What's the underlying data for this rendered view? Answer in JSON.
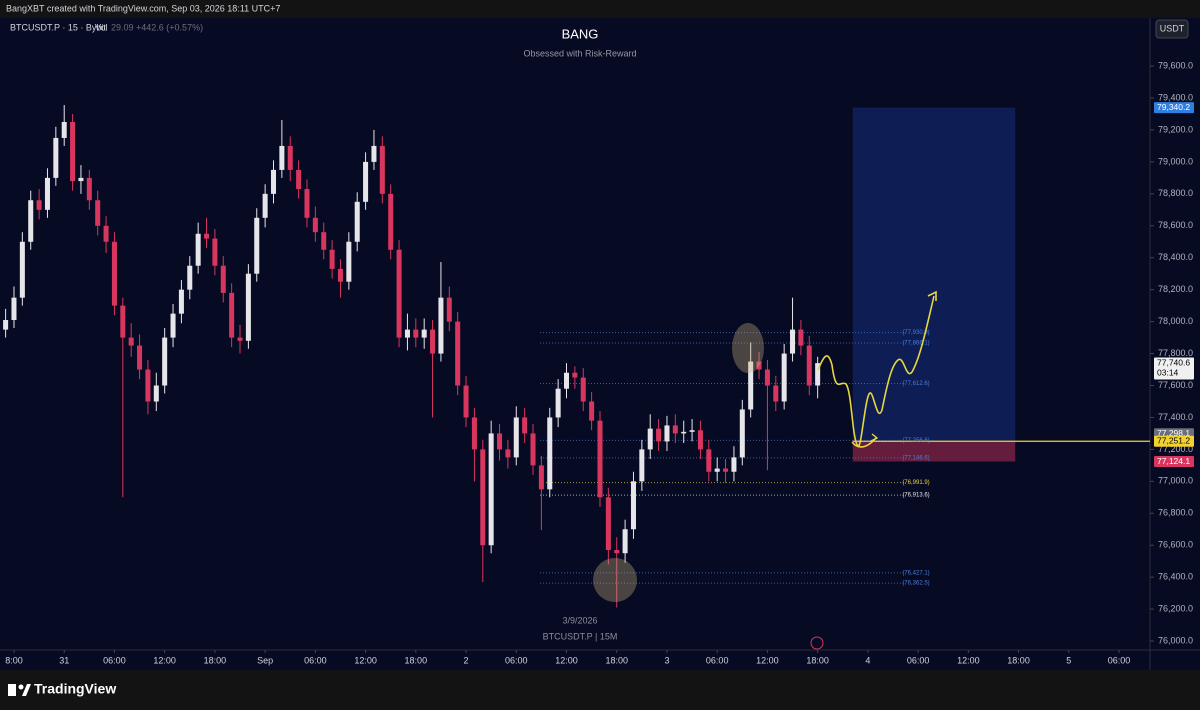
{
  "header": "BangXBT created with TradingView.com, Sep 03, 2026 18:11 UTC+7",
  "footer": "TradingView",
  "chart_data": {
    "type": "candlestick",
    "title": "BANG",
    "subtitle": "Obsessed with Risk-Reward",
    "symbol": "BTCUSDT.P · 15 · Bybit",
    "volume_label": "Vol",
    "volume_text": "29.09 +442.6 (+0.57%)",
    "currency": "USDT",
    "watermark_date": "3/9/2026",
    "watermark_symbol": "BTCUSDT.P | 15M",
    "countdown": "03:14",
    "up_color": "#e6e6ea",
    "down_color": "#d8365e",
    "open": [
      77950,
      78010,
      78150,
      78500,
      78760,
      78700,
      78900,
      79150,
      79250,
      78880,
      78900,
      78760,
      78600,
      78500,
      78100,
      77900,
      77850,
      77700,
      77500,
      77600,
      77900,
      78050,
      78200,
      78350,
      78550,
      78520,
      78350,
      78180,
      77900,
      77880,
      78300,
      78650,
      78800,
      78950,
      79100,
      78950,
      78830,
      78650,
      78560,
      78450,
      78330,
      78250,
      78500,
      78750,
      79000,
      79100,
      78800,
      78450,
      77900,
      77950,
      77900,
      77950,
      77800,
      78150,
      78000,
      77600,
      77400,
      77200,
      76600,
      77300,
      77200,
      77150,
      77400,
      77300,
      77100,
      76950,
      77400,
      77580,
      77680,
      77650,
      77500,
      77380,
      76900,
      76570,
      76550,
      76700,
      77000,
      77200,
      77330,
      77250,
      77350,
      77300,
      77310,
      77320,
      77200,
      77060,
      77080,
      77060,
      77150,
      77450,
      77750,
      77700,
      77600,
      77500,
      77800,
      77950,
      77850,
      77600
    ],
    "high": [
      78080,
      78220,
      78560,
      78820,
      78830,
      78960,
      79220,
      79356,
      79300,
      78980,
      78950,
      78820,
      78660,
      78560,
      78150,
      77990,
      77920,
      77760,
      77680,
      77960,
      78110,
      78260,
      78410,
      78620,
      78650,
      78580,
      78410,
      78240,
      77980,
      78360,
      78710,
      78860,
      79010,
      79262,
      79160,
      79010,
      78890,
      78720,
      78620,
      78510,
      78390,
      78560,
      78810,
      79060,
      79200,
      79160,
      78860,
      78510,
      78050,
      78020,
      78020,
      78010,
      78373,
      78220,
      78060,
      77660,
      77460,
      77260,
      77380,
      77360,
      77260,
      77470,
      77460,
      77360,
      77160,
      77460,
      77640,
      77740,
      77720,
      77710,
      77560,
      77440,
      76960,
      76650,
      76760,
      77060,
      77260,
      77420,
      77390,
      77410,
      77420,
      77380,
      77390,
      77380,
      77260,
      77150,
      77140,
      77220,
      77510,
      77870,
      77810,
      77760,
      77660,
      77860,
      78150,
      78010,
      77910,
      77780
    ],
    "low": [
      77900,
      77960,
      78100,
      78450,
      78640,
      78650,
      78850,
      79100,
      78820,
      78800,
      78700,
      78540,
      78430,
      78040,
      76900,
      77780,
      77640,
      77420,
      77440,
      77550,
      77840,
      77990,
      78140,
      78300,
      78460,
      78290,
      78120,
      77840,
      77800,
      77830,
      78250,
      78590,
      78740,
      78900,
      78880,
      78770,
      78590,
      78500,
      78390,
      78270,
      78150,
      78200,
      78440,
      78700,
      78950,
      78740,
      78390,
      77840,
      77820,
      77840,
      77830,
      77400,
      77750,
      77940,
      77540,
      77340,
      77000,
      76370,
      76550,
      77130,
      77080,
      77100,
      77240,
      77040,
      76695,
      76900,
      77340,
      77520,
      77580,
      77440,
      77320,
      76840,
      76480,
      76210,
      76490,
      76640,
      76940,
      77140,
      77190,
      77190,
      77240,
      77240,
      77250,
      77140,
      77000,
      77000,
      76990,
      77000,
      77100,
      77400,
      77640,
      77070,
      77440,
      77450,
      77750,
      77790,
      77540,
      77520
    ],
    "close": [
      78010,
      78150,
      78500,
      78760,
      78700,
      78900,
      79150,
      79250,
      78880,
      78900,
      78760,
      78600,
      78500,
      78100,
      77900,
      77850,
      77700,
      77500,
      77600,
      77900,
      78050,
      78200,
      78350,
      78550,
      78520,
      78350,
      78180,
      77900,
      77880,
      78300,
      78650,
      78800,
      78950,
      79100,
      78950,
      78830,
      78650,
      78560,
      78450,
      78330,
      78250,
      78500,
      78750,
      79000,
      79100,
      78800,
      78450,
      77900,
      77950,
      77900,
      77950,
      77800,
      78150,
      78000,
      77600,
      77400,
      77200,
      76600,
      77300,
      77200,
      77150,
      77400,
      77300,
      77100,
      76950,
      77400,
      77580,
      77680,
      77650,
      77500,
      77380,
      76900,
      76570,
      76550,
      76700,
      77000,
      77200,
      77330,
      77250,
      77350,
      77300,
      77310,
      77320,
      77200,
      77060,
      77080,
      77060,
      77150,
      77450,
      77750,
      77700,
      77600,
      77500,
      77800,
      77950,
      77850,
      77600,
      77740
    ],
    "xlim": [
      -0.67,
      136.7
    ],
    "xticks": [
      {
        "value": 1,
        "label": "8:00"
      },
      {
        "value": 7,
        "label": "31"
      },
      {
        "value": 13,
        "label": "06:00"
      },
      {
        "value": 19,
        "label": "12:00"
      },
      {
        "value": 25,
        "label": "18:00"
      },
      {
        "value": 31,
        "label": "Sep"
      },
      {
        "value": 37,
        "label": "06:00"
      },
      {
        "value": 43,
        "label": "12:00"
      },
      {
        "value": 49,
        "label": "18:00"
      },
      {
        "value": 55,
        "label": "2"
      },
      {
        "value": 61,
        "label": "06:00"
      },
      {
        "value": 67,
        "label": "12:00"
      },
      {
        "value": 73,
        "label": "18:00"
      },
      {
        "value": 79,
        "label": "3"
      },
      {
        "value": 85,
        "label": "06:00"
      },
      {
        "value": 91,
        "label": "12:00"
      },
      {
        "value": 97,
        "label": "18:00"
      },
      {
        "value": 103,
        "label": "4"
      },
      {
        "value": 109,
        "label": "06:00"
      },
      {
        "value": 115,
        "label": "12:00"
      },
      {
        "value": 121,
        "label": "18:00"
      },
      {
        "value": 127,
        "label": "5"
      },
      {
        "value": 133,
        "label": "06:00"
      }
    ],
    "ylim": [
      75944,
      79901
    ],
    "yticks": [
      {
        "value": 76000,
        "label": "76,000.0"
      },
      {
        "value": 76200,
        "label": "76,200.0"
      },
      {
        "value": 76400,
        "label": "76,400.0"
      },
      {
        "value": 76600,
        "label": "76,600.0"
      },
      {
        "value": 76800,
        "label": "76,800.0"
      },
      {
        "value": 77000,
        "label": "77,000.0"
      },
      {
        "value": 77200,
        "label": "77,200.0"
      },
      {
        "value": 77400,
        "label": "77,400.0"
      },
      {
        "value": 77600,
        "label": "77,600.0"
      },
      {
        "value": 77800,
        "label": "77,800.0"
      },
      {
        "value": 78000,
        "label": "78,000.0"
      },
      {
        "value": 78200,
        "label": "78,200.0"
      },
      {
        "value": 78400,
        "label": "78,400.0"
      },
      {
        "value": 78600,
        "label": "78,600.0"
      },
      {
        "value": 78800,
        "label": "78,800.0"
      },
      {
        "value": 79000,
        "label": "79,000.0"
      },
      {
        "value": 79200,
        "label": "79,200.0"
      },
      {
        "value": 79400,
        "label": "79,400.0"
      },
      {
        "value": 79600,
        "label": "79,600.0"
      }
    ],
    "levels": [
      {
        "value": 77930.9,
        "label": "(77,930.9)",
        "color": "#4a7fd8"
      },
      {
        "value": 77866.1,
        "label": "(77,866.1)",
        "color": "#4a7fd8"
      },
      {
        "value": 77612.6,
        "label": "(77,612.6)",
        "color": "#4a7fd8"
      },
      {
        "value": 77256.6,
        "label": "(77,256.6)",
        "color": "#4a7fd8"
      },
      {
        "value": 77146.6,
        "label": "(77,146.6)",
        "color": "#4a7fd8"
      },
      {
        "value": 76991.9,
        "label": "(76,991.9)",
        "color": "#e8d44a"
      },
      {
        "value": 76913.6,
        "label": "(76,913.6)",
        "color": "#e6e6ea"
      },
      {
        "value": 76427.1,
        "label": "(76,427.1)",
        "color": "#4a7fd8"
      },
      {
        "value": 76362.5,
        "label": "(76,362.5)",
        "color": "#4a7fd8"
      }
    ],
    "position": {
      "target": 79340.2,
      "entry": 77251.2,
      "stop": 77124.1,
      "start": 101.2,
      "end": 120.6
    },
    "price_labels": [
      {
        "value": 79340.2,
        "label": "79,340.2",
        "color": "#2f7fe0",
        "text_color": "#ffffff"
      },
      {
        "value": 77740.6,
        "label": "77,740.6",
        "color": "#f0f0f0",
        "text_color": "#000000"
      },
      {
        "value": 77298.1,
        "label": "77,298.1",
        "color": "#6b6f7a",
        "text_color": "#ffffff"
      },
      {
        "value": 77251.2,
        "label": "77,251.2",
        "color": "#f2d230",
        "text_color": "#000000"
      },
      {
        "value": 77124.1,
        "label": "77,124.1",
        "color": "#d8365e",
        "text_color": "#ffffff"
      }
    ]
  }
}
